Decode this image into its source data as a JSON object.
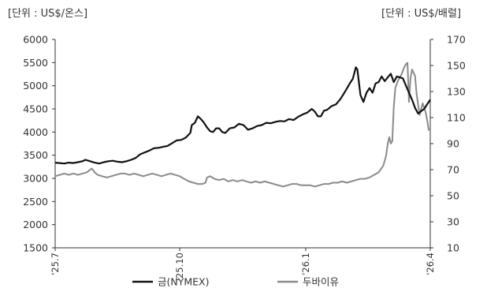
{
  "chart_data": {
    "type": "line",
    "left_unit": "[단위 : US$/온스]",
    "right_unit": "[단위 : US$/배럴]",
    "y_left": {
      "ylim": [
        1500,
        6000
      ],
      "ticks": [
        "6000",
        "5500",
        "5000",
        "4500",
        "4000",
        "3500",
        "3000",
        "2500",
        "2000",
        "1500"
      ]
    },
    "y_right": {
      "ylim": [
        10,
        170
      ],
      "ticks": [
        "170",
        "150",
        "130",
        "110",
        "90",
        "70",
        "50",
        "30",
        "10"
      ]
    },
    "x_ticks": [
      "'25.7",
      "'25.10",
      "'26.1",
      "'26.4"
    ],
    "grid": false,
    "legend_position": "bottom",
    "series": [
      {
        "name": "금(NYMEX)",
        "axis": "left",
        "color": "#111111",
        "points": [
          [
            0,
            3340
          ],
          [
            3,
            3330
          ],
          [
            6,
            3320
          ],
          [
            9,
            3340
          ],
          [
            12,
            3330
          ],
          [
            15,
            3350
          ],
          [
            18,
            3370
          ],
          [
            20,
            3400
          ],
          [
            23,
            3370
          ],
          [
            26,
            3340
          ],
          [
            29,
            3320
          ],
          [
            32,
            3350
          ],
          [
            35,
            3370
          ],
          [
            38,
            3380
          ],
          [
            41,
            3360
          ],
          [
            44,
            3350
          ],
          [
            47,
            3370
          ],
          [
            50,
            3400
          ],
          [
            53,
            3440
          ],
          [
            56,
            3520
          ],
          [
            59,
            3560
          ],
          [
            62,
            3600
          ],
          [
            65,
            3650
          ],
          [
            68,
            3660
          ],
          [
            71,
            3680
          ],
          [
            74,
            3700
          ],
          [
            77,
            3760
          ],
          [
            80,
            3820
          ],
          [
            83,
            3830
          ],
          [
            86,
            3880
          ],
          [
            89,
            3980
          ],
          [
            90,
            4150
          ],
          [
            92,
            4200
          ],
          [
            94,
            4340
          ],
          [
            96,
            4280
          ],
          [
            98,
            4200
          ],
          [
            100,
            4100
          ],
          [
            102,
            4020
          ],
          [
            104,
            4000
          ],
          [
            106,
            4080
          ],
          [
            108,
            4080
          ],
          [
            110,
            4000
          ],
          [
            112,
            3980
          ],
          [
            115,
            4080
          ],
          [
            118,
            4100
          ],
          [
            121,
            4180
          ],
          [
            124,
            4150
          ],
          [
            127,
            4050
          ],
          [
            130,
            4080
          ],
          [
            133,
            4130
          ],
          [
            136,
            4150
          ],
          [
            139,
            4200
          ],
          [
            142,
            4190
          ],
          [
            145,
            4220
          ],
          [
            148,
            4240
          ],
          [
            151,
            4230
          ],
          [
            154,
            4280
          ],
          [
            157,
            4260
          ],
          [
            160,
            4330
          ],
          [
            163,
            4380
          ],
          [
            166,
            4420
          ],
          [
            169,
            4500
          ],
          [
            171,
            4440
          ],
          [
            173,
            4340
          ],
          [
            175,
            4340
          ],
          [
            177,
            4460
          ],
          [
            179,
            4480
          ],
          [
            182,
            4560
          ],
          [
            185,
            4600
          ],
          [
            188,
            4720
          ],
          [
            191,
            4880
          ],
          [
            194,
            5050
          ],
          [
            196,
            5150
          ],
          [
            198,
            5400
          ],
          [
            199,
            5350
          ],
          [
            201,
            4800
          ],
          [
            203,
            4650
          ],
          [
            205,
            4850
          ],
          [
            207,
            4950
          ],
          [
            209,
            4850
          ],
          [
            211,
            5050
          ],
          [
            213,
            5080
          ],
          [
            215,
            5200
          ],
          [
            217,
            5100
          ],
          [
            219,
            5180
          ],
          [
            221,
            5260
          ],
          [
            223,
            5080
          ],
          [
            225,
            5200
          ],
          [
            227,
            5180
          ],
          [
            229,
            5160
          ],
          [
            231,
            5000
          ],
          [
            233,
            4850
          ],
          [
            235,
            4700
          ],
          [
            237,
            4520
          ],
          [
            239,
            4400
          ],
          [
            241,
            4450
          ],
          [
            243,
            4500
          ],
          [
            245,
            4600
          ],
          [
            247,
            4700
          ]
        ]
      },
      {
        "name": "두바이유",
        "axis": "right",
        "color": "#8a8a8a",
        "points": [
          [
            0,
            65
          ],
          [
            3,
            66
          ],
          [
            6,
            67
          ],
          [
            9,
            66
          ],
          [
            12,
            67
          ],
          [
            15,
            66
          ],
          [
            18,
            67
          ],
          [
            21,
            68
          ],
          [
            24,
            71
          ],
          [
            26,
            68
          ],
          [
            28,
            66
          ],
          [
            31,
            65
          ],
          [
            34,
            64
          ],
          [
            37,
            65
          ],
          [
            40,
            66
          ],
          [
            43,
            67
          ],
          [
            46,
            67
          ],
          [
            49,
            66
          ],
          [
            52,
            67
          ],
          [
            55,
            66
          ],
          [
            58,
            65
          ],
          [
            61,
            66
          ],
          [
            64,
            67
          ],
          [
            67,
            66
          ],
          [
            70,
            65
          ],
          [
            73,
            66
          ],
          [
            76,
            67
          ],
          [
            79,
            66
          ],
          [
            82,
            65
          ],
          [
            85,
            63
          ],
          [
            88,
            61
          ],
          [
            91,
            60
          ],
          [
            94,
            59
          ],
          [
            97,
            59
          ],
          [
            99,
            60
          ],
          [
            100,
            64
          ],
          [
            102,
            65
          ],
          [
            105,
            63
          ],
          [
            108,
            62
          ],
          [
            111,
            63
          ],
          [
            114,
            61
          ],
          [
            117,
            62
          ],
          [
            120,
            61
          ],
          [
            123,
            62
          ],
          [
            126,
            61
          ],
          [
            129,
            60
          ],
          [
            132,
            61
          ],
          [
            135,
            60
          ],
          [
            138,
            61
          ],
          [
            141,
            60
          ],
          [
            144,
            59
          ],
          [
            147,
            58
          ],
          [
            150,
            57
          ],
          [
            153,
            58
          ],
          [
            156,
            59
          ],
          [
            159,
            59
          ],
          [
            162,
            58
          ],
          [
            165,
            58
          ],
          [
            168,
            58
          ],
          [
            171,
            57
          ],
          [
            174,
            58
          ],
          [
            177,
            59
          ],
          [
            180,
            59
          ],
          [
            183,
            60
          ],
          [
            186,
            60
          ],
          [
            189,
            61
          ],
          [
            192,
            60
          ],
          [
            195,
            61
          ],
          [
            198,
            62
          ],
          [
            201,
            63
          ],
          [
            204,
            63
          ],
          [
            207,
            64
          ],
          [
            210,
            66
          ],
          [
            213,
            68
          ],
          [
            216,
            73
          ],
          [
            218,
            81
          ],
          [
            219,
            90
          ],
          [
            220,
            95
          ],
          [
            221,
            90
          ],
          [
            222,
            92
          ],
          [
            223,
            118
          ],
          [
            224,
            133
          ],
          [
            226,
            139
          ],
          [
            228,
            143
          ],
          [
            230,
            149
          ],
          [
            231,
            151
          ],
          [
            232,
            152
          ],
          [
            233,
            122
          ],
          [
            234,
            140
          ],
          [
            235,
            147
          ],
          [
            237,
            142
          ],
          [
            238,
            128
          ],
          [
            240,
            112
          ],
          [
            242,
            121
          ],
          [
            244,
            114
          ],
          [
            245,
            108
          ],
          [
            246,
            100
          ]
        ]
      }
    ]
  }
}
